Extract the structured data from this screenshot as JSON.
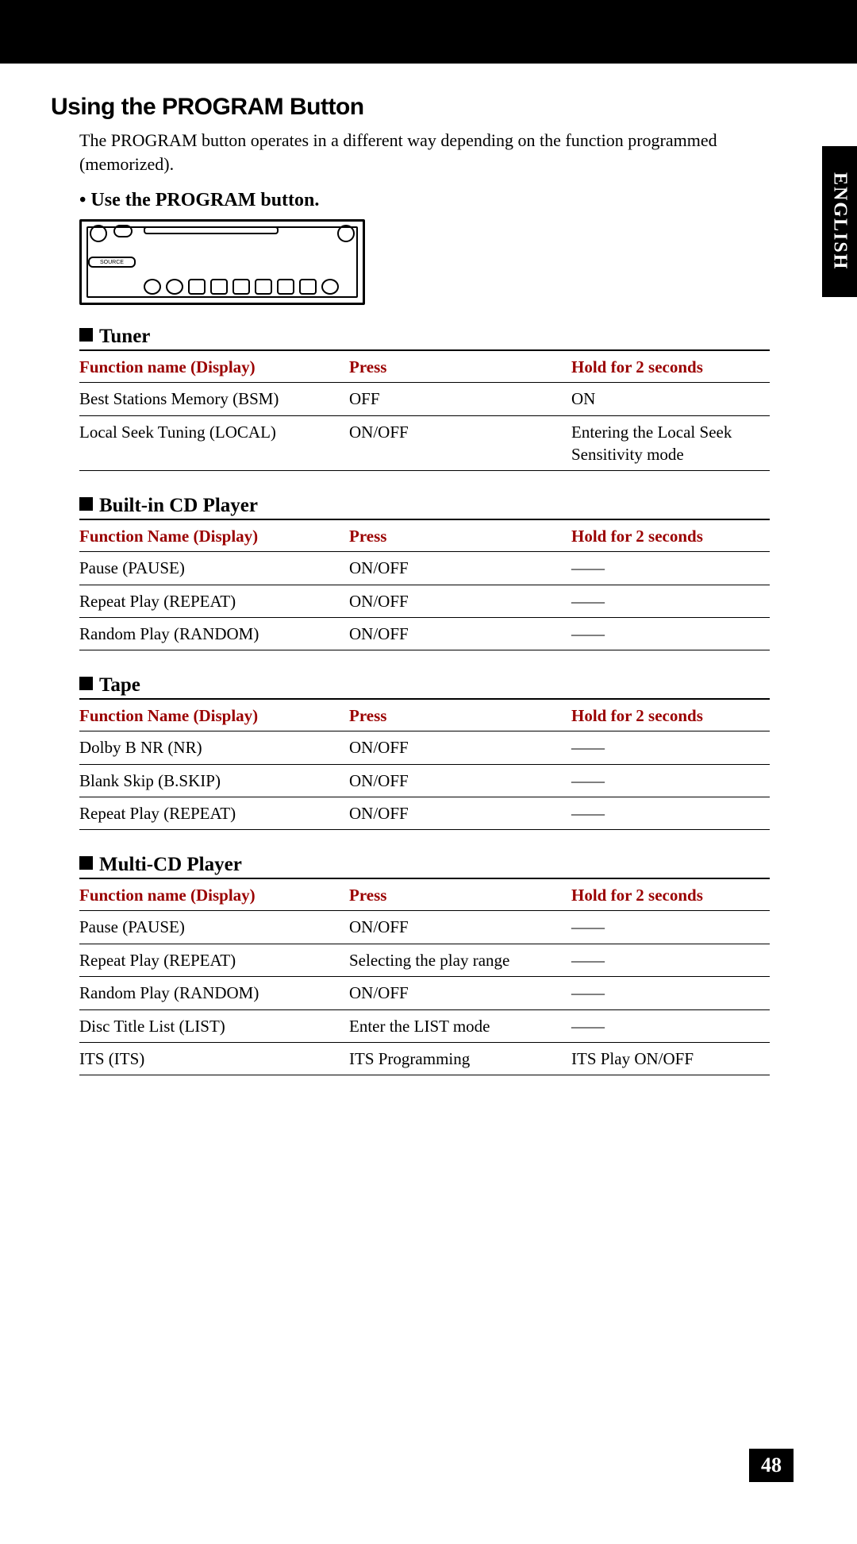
{
  "language_tab": "ENGLISH",
  "page_number": "48",
  "heading": "Using the PROGRAM Button",
  "intro": "The PROGRAM button operates in a different way depending on the function programmed (memorized).",
  "bullet": "• Use the PROGRAM button.",
  "tables": {
    "tuner": {
      "title": "Tuner",
      "columns": [
        "Function name (Display)",
        "Press",
        "Hold for 2 seconds"
      ],
      "rows": [
        [
          "Best Stations Memory (BSM)",
          "OFF",
          "ON"
        ],
        [
          "Local Seek Tuning (LOCAL)",
          "ON/OFF",
          "Entering the Local Seek Sensitivity mode"
        ]
      ]
    },
    "cd": {
      "title": "Built-in CD Player",
      "columns": [
        "Function Name (Display)",
        "Press",
        "Hold for 2 seconds"
      ],
      "rows": [
        [
          "Pause (PAUSE)",
          "ON/OFF",
          "——"
        ],
        [
          "Repeat Play (REPEAT)",
          "ON/OFF",
          "——"
        ],
        [
          "Random Play (RANDOM)",
          "ON/OFF",
          "——"
        ]
      ]
    },
    "tape": {
      "title": "Tape",
      "columns": [
        "Function Name (Display)",
        "Press",
        "Hold for 2 seconds"
      ],
      "rows": [
        [
          "Dolby B NR (NR)",
          "ON/OFF",
          "——"
        ],
        [
          "Blank Skip (B.SKIP)",
          "ON/OFF",
          "——"
        ],
        [
          "Repeat Play (REPEAT)",
          "ON/OFF",
          "——"
        ]
      ]
    },
    "multicd": {
      "title": "Multi-CD Player",
      "columns": [
        "Function name (Display)",
        "Press",
        "Hold for 2 seconds"
      ],
      "rows": [
        [
          "Pause (PAUSE)",
          "ON/OFF",
          "——"
        ],
        [
          "Repeat Play (REPEAT)",
          "Selecting the play range",
          "——"
        ],
        [
          "Random Play (RANDOM)",
          "ON/OFF",
          "——"
        ],
        [
          "Disc Title List (LIST)",
          "Enter the LIST mode",
          "——"
        ],
        [
          "ITS (ITS)",
          "ITS Programming",
          "ITS Play ON/OFF"
        ]
      ]
    }
  },
  "colors": {
    "header_red": "#9a0000"
  }
}
